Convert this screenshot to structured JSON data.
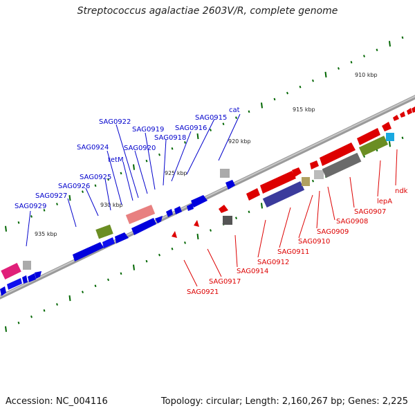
{
  "title": "Streptococcus agalactiae 2603V/R, complete genome",
  "footer": {
    "accession": "Accession: NC_004116",
    "summary": "Topology: circular; Length: 2,160,267 bp; Genes: 2,225"
  },
  "colors": {
    "plus_strand": "#0000dd",
    "minus_strand": "#dd0000",
    "backbone": "#8c8c8c",
    "tick": "#006600"
  },
  "scale_labels": [
    "910 kbp",
    "915 kbp",
    "920 kbp",
    "925 kbp",
    "930 kbp",
    "935 kbp"
  ],
  "gene_labels_top": [
    "cat",
    "SAG0915",
    "SAG0916",
    "SAG0918",
    "SAG0919",
    "SAG0920",
    "SAG0922",
    "SAG0924",
    "tetM",
    "SAG0925",
    "SAG0926",
    "SAG0927",
    "SAG0929"
  ],
  "gene_labels_bottom": [
    "ndk",
    "lepA",
    "SAG0907",
    "SAG0908",
    "SAG0909",
    "SAG0910",
    "SAG0911",
    "SAG0912",
    "SAG0914",
    "SAG0917",
    "SAG0921"
  ]
}
